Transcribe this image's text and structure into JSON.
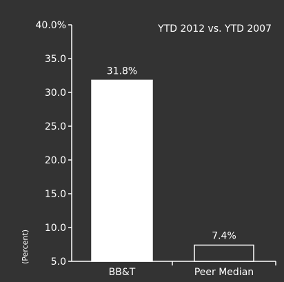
{
  "chart_data": {
    "type": "bar",
    "title": "YTD 2012 vs. YTD 2007",
    "ylabel": "(Percent)",
    "xlabel": "",
    "ylim": [
      5.0,
      40.0
    ],
    "yticks": [
      "40.0%",
      "35.0",
      "30.0",
      "25.0",
      "20.0",
      "15.0",
      "10.0",
      "5.0"
    ],
    "categories": [
      "BB&T",
      "Peer Median"
    ],
    "values": [
      31.8,
      7.4
    ],
    "data_labels": [
      "31.8%",
      "7.4%"
    ],
    "bar_fill": [
      "#ffffff",
      "#333333"
    ],
    "bar_stroke": "#ffffff",
    "background": "#333333",
    "grid": false,
    "legend": "none"
  }
}
